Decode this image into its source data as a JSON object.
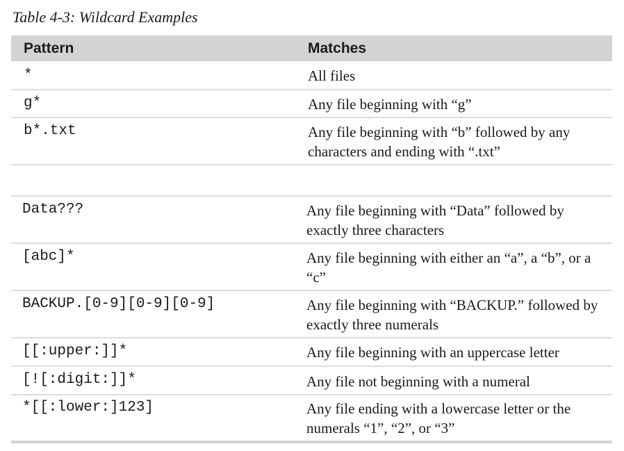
{
  "caption": "Table 4-3: Wildcard Examples",
  "header": {
    "pattern": "Pattern",
    "matches": "Matches"
  },
  "rows": [
    {
      "pattern": "*",
      "matches": "All files"
    },
    {
      "pattern": "g*",
      "matches": "Any file beginning with “g”"
    },
    {
      "pattern": "b*.txt",
      "matches": "Any file beginning with “b” followed by any characters and ending with “.txt”"
    },
    {
      "pattern": "",
      "matches": ""
    },
    {
      "pattern": "Data???",
      "matches": "Any file beginning with “Data” followed by exactly three characters"
    },
    {
      "pattern": "[abc]*",
      "matches": "Any file beginning with either an “a”, a “b”, or a “c”"
    },
    {
      "pattern": "BACKUP.[0-9][0-9][0-9]",
      "matches": "Any file beginning with “BACKUP.” followed by exactly three numerals"
    },
    {
      "pattern": "[[:upper:]]*",
      "matches": "Any file beginning with an uppercase letter"
    },
    {
      "pattern": "[![:digit:]]*",
      "matches": "Any file not beginning with a numeral"
    },
    {
      "pattern": "*[[:lower:]123]",
      "matches": "Any file ending with a lowercase letter or the numerals “1”, “2”, or “3”"
    }
  ]
}
